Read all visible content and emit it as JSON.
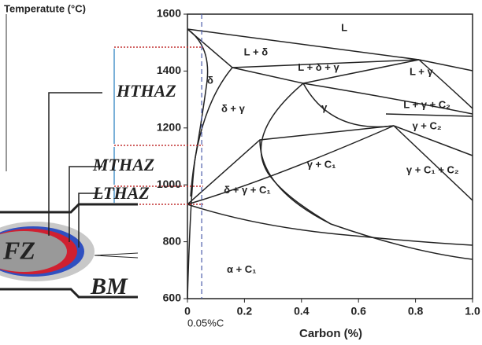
{
  "axis_title_y": "Temperatute (°C)",
  "axis_title_x": "Carbon (%)",
  "x_ticks": [
    {
      "value": 0,
      "label": "0"
    },
    {
      "value": 0.2,
      "label": "0.2"
    },
    {
      "value": 0.4,
      "label": "0.4"
    },
    {
      "value": 0.6,
      "label": "0.6"
    },
    {
      "value": 0.8,
      "label": "0.8"
    },
    {
      "value": 1.0,
      "label": "1.0"
    }
  ],
  "y_ticks": [
    600,
    800,
    1000,
    1200,
    1400,
    1600
  ],
  "xlim": [
    0,
    1.0
  ],
  "ylim": [
    600,
    1600
  ],
  "marker": {
    "value": 0.05,
    "label": "0.05%C"
  },
  "phases": [
    {
      "label": "L",
      "x": 0.55,
      "t": 1550
    },
    {
      "label": "L + δ",
      "x": 0.24,
      "t": 1465
    },
    {
      "label": "δ",
      "x": 0.08,
      "t": 1365
    },
    {
      "label": "L + δ + γ",
      "x": 0.46,
      "t": 1410
    },
    {
      "label": "L + γ",
      "x": 0.82,
      "t": 1395
    },
    {
      "label": "δ + γ",
      "x": 0.16,
      "t": 1265
    },
    {
      "label": "γ",
      "x": 0.48,
      "t": 1270
    },
    {
      "label": "L + γ + C₂",
      "x": 0.84,
      "t": 1280
    },
    {
      "label": "γ + C₂",
      "x": 0.84,
      "t": 1205
    },
    {
      "label": "γ + C₁",
      "x": 0.47,
      "t": 1070
    },
    {
      "label": "γ + C₁ + C₂",
      "x": 0.86,
      "t": 1050
    },
    {
      "label": "δ + γ + C₁",
      "x": 0.21,
      "t": 980
    },
    {
      "label": "α + C₁",
      "x": 0.19,
      "t": 700
    }
  ],
  "zones": {
    "htbaz": "HTHAZ",
    "mthaz": "MTHAZ",
    "lthaz": "LTHAZ",
    "fz": "FZ",
    "bm": "BM"
  }
}
